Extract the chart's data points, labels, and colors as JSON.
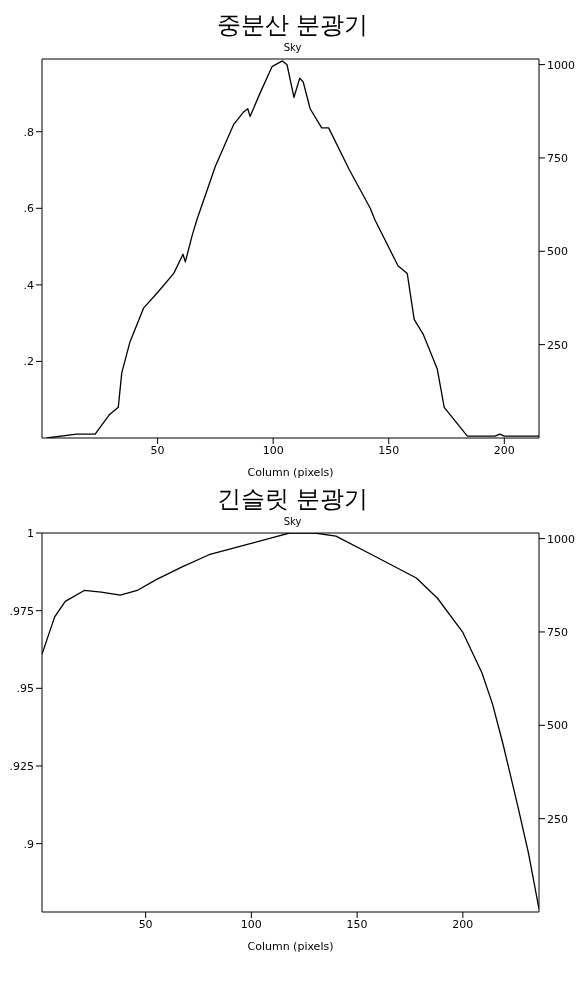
{
  "chart_data": [
    {
      "type": "line",
      "title": "중분산 분광기",
      "subtitle": "Sky",
      "xlabel": "Column (pixels)",
      "xlim": [
        0,
        215
      ],
      "xticks": [
        50,
        100,
        150,
        200
      ],
      "ylim": [
        0,
        0.99
      ],
      "yticks": [
        {
          "value": 0.2,
          "label": ".2"
        },
        {
          "value": 0.4,
          "label": ".4"
        },
        {
          "value": 0.6,
          "label": ".6"
        },
        {
          "value": 0.8,
          "label": ".8"
        }
      ],
      "y2lim": [
        0,
        1015
      ],
      "y2ticks": [
        250,
        500,
        750,
        1000
      ],
      "series": [
        {
          "color": "#000000",
          "x": [
            2,
            15,
            23,
            29,
            33,
            34.5,
            38,
            44,
            50,
            57,
            61,
            62,
            65,
            67,
            75,
            83,
            87,
            89,
            90,
            95,
            99.5,
            104,
            106,
            109,
            111.5,
            113,
            116,
            121,
            124,
            133,
            142,
            144,
            154,
            158,
            161,
            165,
            171,
            174,
            182,
            184,
            196,
            198,
            200,
            215
          ],
          "values": [
            0,
            0.01,
            0.01,
            0.06,
            0.08,
            0.17,
            0.25,
            0.34,
            0.38,
            0.43,
            0.48,
            0.46,
            0.53,
            0.57,
            0.71,
            0.82,
            0.85,
            0.86,
            0.84,
            0.91,
            0.97,
            0.985,
            0.975,
            0.89,
            0.94,
            0.93,
            0.86,
            0.81,
            0.81,
            0.7,
            0.6,
            0.57,
            0.45,
            0.43,
            0.31,
            0.27,
            0.18,
            0.08,
            0.02,
            0.005,
            0.005,
            0.01,
            0.005,
            0.005
          ]
        }
      ]
    },
    {
      "type": "line",
      "title": "긴슬릿 분광기",
      "subtitle": "Sky",
      "xlabel": "Column (pixels)",
      "xlim": [
        1,
        236
      ],
      "xticks": [
        50,
        100,
        150,
        200
      ],
      "ylim": [
        0.878,
        1
      ],
      "yticks": [
        {
          "value": 0.9,
          "label": ".9"
        },
        {
          "value": 0.925,
          "label": ".925"
        },
        {
          "value": 0.95,
          "label": ".95"
        },
        {
          "value": 0.975,
          "label": ".975"
        },
        1
      ],
      "y2lim": [
        0,
        1015
      ],
      "y2ticks": [
        250,
        500,
        750,
        1000
      ],
      "series": [
        {
          "color": "#000000",
          "x": [
            1,
            7,
            12,
            21,
            29,
            38,
            46,
            55,
            67,
            80,
            99,
            118,
            130,
            140,
            157,
            178,
            188,
            200,
            209,
            214,
            219,
            226,
            231,
            236
          ],
          "values": [
            0.961,
            0.973,
            0.978,
            0.9815,
            0.981,
            0.98,
            0.9815,
            0.985,
            0.989,
            0.993,
            0.9965,
            1,
            1,
            0.999,
            0.993,
            0.9855,
            0.979,
            0.968,
            0.955,
            0.945,
            0.932,
            0.912,
            0.897,
            0.879
          ]
        }
      ]
    }
  ]
}
